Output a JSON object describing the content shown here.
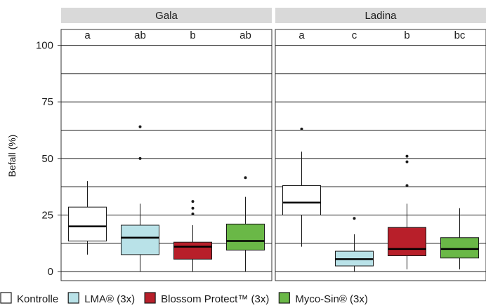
{
  "chart_data": {
    "type": "box",
    "ylabel": "Befall (%)",
    "ylim": [
      -4,
      107
    ],
    "y_ticks": [
      0,
      25,
      50,
      75,
      100
    ],
    "y_tick_labels": [
      "0",
      "25",
      "50",
      "75",
      "100"
    ],
    "y_gridlines": [
      0,
      12.5,
      25,
      37.5,
      50,
      62.5,
      75,
      87.5,
      100
    ],
    "grid": true,
    "legend_position": "bottom",
    "legend": [
      {
        "label": "Kontrolle",
        "color": "#ffffff"
      },
      {
        "label": "LMA® (3x)",
        "color": "#b9e2e8"
      },
      {
        "label": "Blossom Protect™ (3x)",
        "color": "#b81f2a"
      },
      {
        "label": "Myco-Sin® (3x)",
        "color": "#6ab847"
      }
    ],
    "panels": [
      {
        "title": "Gala",
        "groups": [
          {
            "treatment": "Kontrolle",
            "letter": "a",
            "min": 7.5,
            "q1": 13.5,
            "median": 20,
            "q3": 28.5,
            "max": 40,
            "outliers": []
          },
          {
            "treatment": "LMA® (3x)",
            "letter": "ab",
            "min": 0,
            "q1": 7.5,
            "median": 15,
            "q3": 20.5,
            "max": 30,
            "outliers": [
              50,
              64
            ]
          },
          {
            "treatment": "Blossom Protect™ (3x)",
            "letter": "b",
            "min": 0,
            "q1": 5.5,
            "median": 11,
            "q3": 13,
            "max": 20.5,
            "outliers": [
              25.5,
              28,
              31
            ]
          },
          {
            "treatment": "Myco-Sin® (3x)",
            "letter": "ab",
            "min": 0,
            "q1": 9.5,
            "median": 13.5,
            "q3": 21,
            "max": 33,
            "outliers": [
              41.5
            ]
          }
        ]
      },
      {
        "title": "Ladina",
        "groups": [
          {
            "treatment": "Kontrolle",
            "letter": "a",
            "min": 11,
            "q1": 25,
            "median": 30.5,
            "q3": 38,
            "max": 53,
            "outliers": [
              63
            ]
          },
          {
            "treatment": "LMA® (3x)",
            "letter": "c",
            "min": 0,
            "q1": 2.5,
            "median": 5.5,
            "q3": 9,
            "max": 16.5,
            "outliers": [
              23.5
            ]
          },
          {
            "treatment": "Blossom Protect™ (3x)",
            "letter": "b",
            "min": 1,
            "q1": 7,
            "median": 10,
            "q3": 19.5,
            "max": 30,
            "outliers": [
              38,
              48.5,
              51
            ]
          },
          {
            "treatment": "Myco-Sin® (3x)",
            "letter": "bc",
            "min": 1,
            "q1": 6,
            "median": 10,
            "q3": 15,
            "max": 28,
            "outliers": []
          }
        ]
      }
    ]
  }
}
